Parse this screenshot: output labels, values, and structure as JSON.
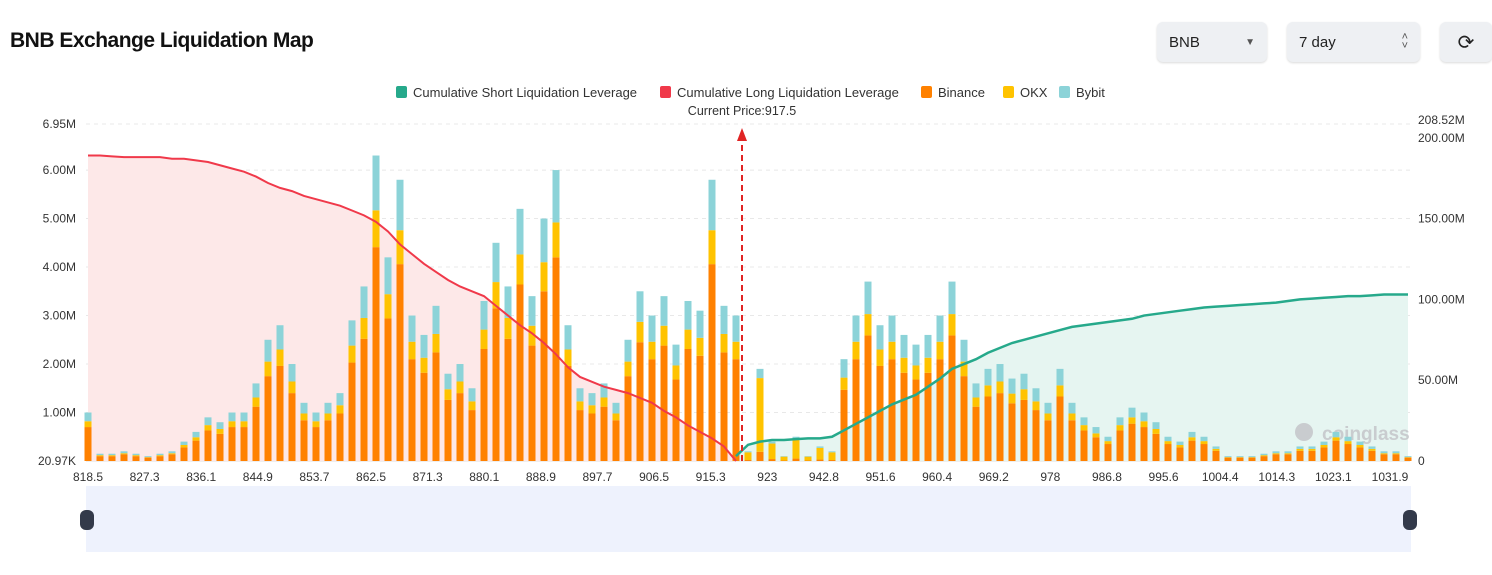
{
  "header": {
    "title": "BNB Exchange Liquidation Map",
    "symbol_select": "BNB",
    "range_select": "7 day",
    "refresh_icon": "refresh-icon"
  },
  "colors": {
    "short": "#26a98b",
    "long": "#f0394a",
    "binance": "#ff8100",
    "okx": "#ffc300",
    "bybit": "#8cd3d8",
    "long_fill": "#fde8e8",
    "short_fill": "#e6f5f1",
    "slider": "#eef2fd"
  },
  "chart_data": {
    "type": "bar",
    "legend": [
      "Cumulative Short Liquidation Leverage",
      "Cumulative Long Liquidation Leverage",
      "Binance",
      "OKX",
      "Bybit"
    ],
    "legend_placement": "top",
    "current_price_label": "Current Price:917.5",
    "current_price": 917.5,
    "x_ticks": [
      "818.5",
      "827.3",
      "836.1",
      "844.9",
      "853.7",
      "862.5",
      "871.3",
      "880.1",
      "888.9",
      "897.7",
      "906.5",
      "915.3",
      "923",
      "942.8",
      "951.6",
      "960.4",
      "969.2",
      "978",
      "986.8",
      "995.6",
      "1004.4",
      "1014.3",
      "1023.1",
      "1031.9"
    ],
    "y_left_ticks": [
      "20.97K",
      "1.00M",
      "2.00M",
      "3.00M",
      "4.00M",
      "5.00M",
      "6.00M",
      "6.95M"
    ],
    "y_left_range": [
      0,
      6.95
    ],
    "y_right_ticks": [
      "0",
      "50.00M",
      "100.00M",
      "150.00M",
      "200.00M",
      "208.52M"
    ],
    "y_right_range": [
      0,
      208.52
    ],
    "units": "M",
    "grid": true,
    "watermark": "coinglass",
    "series": [
      {
        "name": "Binance",
        "values": [
          0.7,
          0.1,
          0.1,
          0.14,
          0.1,
          0.07,
          0.1,
          0.14,
          0.28,
          0.42,
          0.63,
          0.56,
          0.7,
          0.7,
          1.12,
          1.75,
          1.96,
          1.4,
          0.84,
          0.7,
          0.84,
          0.98,
          2.03,
          2.52,
          4.41,
          2.94,
          4.06,
          2.1,
          1.82,
          2.24,
          1.26,
          1.4,
          1.05,
          2.31,
          3.15,
          2.52,
          3.64,
          2.38,
          3.5,
          4.2,
          1.96,
          1.05,
          0.98,
          1.12,
          0.84,
          1.75,
          2.45,
          2.1,
          2.38,
          1.68,
          2.31,
          2.17,
          4.06,
          2.24,
          2.1,
          0.02,
          0.19,
          0.04,
          0.01,
          0.05,
          0.01,
          0.03,
          0.02,
          1.47,
          2.1,
          2.59,
          1.96,
          2.1,
          1.82,
          1.68,
          1.82,
          2.1,
          2.59,
          1.75,
          1.12,
          1.33,
          1.4,
          1.19,
          1.26,
          1.05,
          0.84,
          1.33,
          0.84,
          0.63,
          0.49,
          0.35,
          0.63,
          0.77,
          0.7,
          0.56,
          0.35,
          0.28,
          0.42,
          0.35,
          0.21,
          0.07,
          0.07,
          0.07,
          0.1,
          0.14,
          0.14,
          0.21,
          0.21,
          0.28,
          0.42,
          0.35,
          0.28,
          0.21,
          0.14,
          0.14,
          0.07
        ]
      },
      {
        "name": "OKX",
        "values": [
          0.12,
          0.02,
          0.02,
          0.02,
          0.02,
          0.01,
          0.02,
          0.02,
          0.05,
          0.07,
          0.11,
          0.1,
          0.12,
          0.12,
          0.19,
          0.3,
          0.34,
          0.24,
          0.14,
          0.12,
          0.14,
          0.17,
          0.35,
          0.43,
          0.76,
          0.5,
          0.7,
          0.36,
          0.31,
          0.38,
          0.22,
          0.24,
          0.18,
          0.4,
          0.54,
          0.43,
          0.62,
          0.41,
          0.6,
          0.72,
          0.34,
          0.18,
          0.17,
          0.19,
          0.14,
          0.3,
          0.42,
          0.36,
          0.41,
          0.29,
          0.4,
          0.37,
          0.7,
          0.38,
          0.36,
          0.16,
          1.52,
          0.32,
          0.08,
          0.4,
          0.08,
          0.24,
          0.16,
          0.25,
          0.36,
          0.44,
          0.34,
          0.36,
          0.31,
          0.29,
          0.31,
          0.36,
          0.44,
          0.3,
          0.19,
          0.23,
          0.24,
          0.2,
          0.22,
          0.18,
          0.14,
          0.23,
          0.14,
          0.11,
          0.08,
          0.06,
          0.11,
          0.13,
          0.12,
          0.1,
          0.06,
          0.05,
          0.07,
          0.06,
          0.04,
          0.01,
          0.01,
          0.01,
          0.02,
          0.02,
          0.02,
          0.04,
          0.04,
          0.05,
          0.07,
          0.06,
          0.05,
          0.04,
          0.02,
          0.02,
          0.01
        ]
      },
      {
        "name": "Bybit",
        "values": [
          0.18,
          0.03,
          0.03,
          0.04,
          0.03,
          0.02,
          0.03,
          0.04,
          0.07,
          0.11,
          0.16,
          0.14,
          0.18,
          0.18,
          0.29,
          0.45,
          0.5,
          0.36,
          0.22,
          0.18,
          0.22,
          0.25,
          0.52,
          0.65,
          1.13,
          0.76,
          1.04,
          0.54,
          0.47,
          0.58,
          0.32,
          0.36,
          0.27,
          0.59,
          0.81,
          0.65,
          0.94,
          0.61,
          0.9,
          1.08,
          0.5,
          0.27,
          0.25,
          0.29,
          0.22,
          0.45,
          0.63,
          0.54,
          0.61,
          0.43,
          0.59,
          0.56,
          1.04,
          0.58,
          0.54,
          0.02,
          0.19,
          0.04,
          0.01,
          0.05,
          0.01,
          0.03,
          0.02,
          0.38,
          0.54,
          0.67,
          0.5,
          0.54,
          0.47,
          0.43,
          0.47,
          0.54,
          0.67,
          0.45,
          0.29,
          0.34,
          0.36,
          0.31,
          0.32,
          0.27,
          0.22,
          0.34,
          0.22,
          0.16,
          0.13,
          0.09,
          0.16,
          0.2,
          0.18,
          0.14,
          0.09,
          0.07,
          0.11,
          0.09,
          0.05,
          0.02,
          0.02,
          0.02,
          0.03,
          0.04,
          0.04,
          0.05,
          0.05,
          0.07,
          0.11,
          0.09,
          0.07,
          0.05,
          0.04,
          0.04,
          0.02
        ]
      },
      {
        "name": "Cumulative Long Liquidation Leverage",
        "values": [
          189,
          189,
          188.5,
          188,
          188,
          188,
          188,
          187,
          187,
          186,
          185,
          183,
          181,
          179,
          176,
          172,
          169,
          167,
          164,
          162,
          160,
          158,
          155,
          152,
          148,
          142,
          134,
          128,
          122,
          117,
          112,
          108,
          105,
          102,
          96,
          90,
          84,
          79,
          73,
          66,
          58,
          52,
          49,
          46,
          44,
          42,
          39,
          36,
          31,
          27,
          22,
          18,
          14,
          9,
          0
        ]
      },
      {
        "name": "Cumulative Short Liquidation Leverage",
        "values": [
          3,
          10,
          12,
          13,
          13,
          13.5,
          14,
          14,
          15,
          19,
          23,
          27,
          31,
          35,
          38,
          41,
          46,
          51,
          57,
          60,
          63,
          67,
          70,
          73,
          75,
          77,
          79,
          81,
          83,
          84,
          85,
          86,
          87,
          88,
          90,
          91,
          92,
          93,
          94,
          95,
          95.5,
          96,
          96.5,
          97,
          97.5,
          98,
          99,
          100,
          100.5,
          101,
          101.5,
          102,
          102,
          102.5,
          103,
          103,
          103
        ]
      }
    ]
  }
}
